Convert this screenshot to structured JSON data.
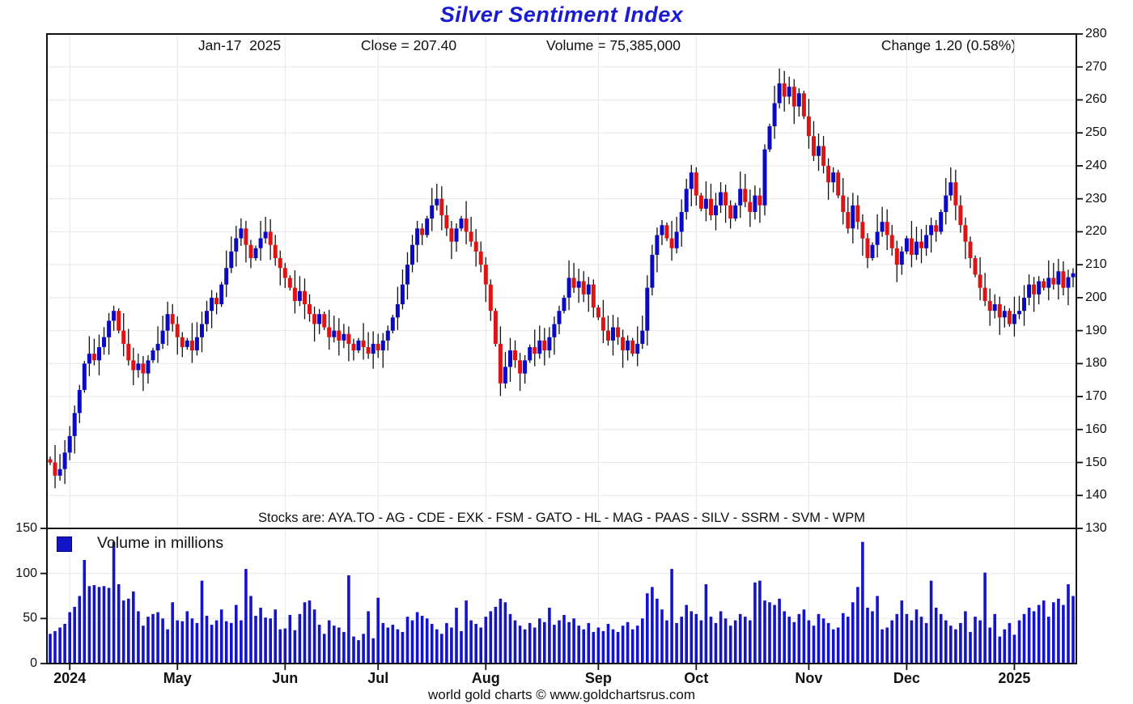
{
  "title": "Silver Sentiment Index",
  "header": {
    "date": "Jan-17  2025",
    "close": "Close = 207.40",
    "volume": "Volume = 75,385,000",
    "change": "Change 1.20 (0.58%)"
  },
  "stocks_line": "Stocks are: AYA.TO - AG - CDE - EXK - FSM - GATO - HL - MAG - PAAS - SILV - SSRM - SVM - WPM",
  "legend": {
    "label": "Volume in millions"
  },
  "footer": "world gold charts © www.goldchartsrus.com",
  "colors": {
    "up": "#0a0ac4",
    "down": "#dc1414",
    "wick": "#111111",
    "volume": "#1414c8",
    "title": "#1b1bd0",
    "grid": "#e8e8e8",
    "grid_vertical": "#e2e6ee",
    "axis": "#111111"
  },
  "chart_data": {
    "type": "candlestick+volume",
    "accuracy_note": "values estimated from chart pixels; opens derived from prior close",
    "price_axis": {
      "min": 130,
      "max": 280,
      "tick_step": 10,
      "side": "right",
      "ticks": [
        280,
        270,
        260,
        250,
        240,
        230,
        220,
        210,
        200,
        190,
        180,
        170,
        160,
        150,
        140,
        130
      ]
    },
    "volume_axis": {
      "min": 0,
      "max": 150,
      "ticks": [
        150,
        100,
        50,
        0
      ],
      "unit": "millions",
      "side": "left"
    },
    "x_months": [
      {
        "label": "2024",
        "index": 4
      },
      {
        "label": "May",
        "index": 26
      },
      {
        "label": "Jun",
        "index": 48
      },
      {
        "label": "Jul",
        "index": 67
      },
      {
        "label": "Aug",
        "index": 89
      },
      {
        "label": "Sep",
        "index": 112
      },
      {
        "label": "Oct",
        "index": 132
      },
      {
        "label": "Nov",
        "index": 155
      },
      {
        "label": "Dec",
        "index": 175
      },
      {
        "label": "2025",
        "index": 197
      }
    ],
    "first_open": 151,
    "closes": [
      150,
      146,
      148,
      153,
      158,
      165,
      172,
      180,
      183,
      181,
      185,
      188,
      193,
      196,
      190,
      186,
      181,
      178,
      180,
      177,
      181,
      184,
      186,
      190,
      195,
      192,
      188,
      185,
      187,
      184,
      188,
      192,
      196,
      200,
      198,
      204,
      209,
      214,
      218,
      221,
      216,
      212,
      215,
      218,
      220,
      216,
      212,
      209,
      206,
      203,
      199,
      202,
      198,
      195,
      192,
      195,
      191,
      188,
      190,
      187,
      189,
      186,
      184,
      187,
      185,
      183,
      186,
      184,
      187,
      190,
      194,
      198,
      204,
      210,
      216,
      221,
      219,
      224,
      228,
      230,
      225,
      221,
      217,
      221,
      224,
      220,
      217,
      214,
      210,
      204,
      196,
      186,
      174,
      179,
      184,
      181,
      177,
      181,
      185,
      183,
      187,
      184,
      188,
      192,
      196,
      200,
      206,
      203,
      205,
      201,
      204,
      197,
      194,
      190,
      187,
      191,
      188,
      184,
      187,
      183,
      186,
      190,
      203,
      213,
      219,
      222,
      218,
      215,
      220,
      226,
      233,
      238,
      231,
      227,
      230,
      225,
      228,
      232,
      228,
      224,
      228,
      233,
      229,
      226,
      231,
      228,
      245,
      252,
      259,
      265,
      261,
      264,
      258,
      262,
      255,
      249,
      243,
      246,
      240,
      235,
      238,
      231,
      226,
      221,
      228,
      223,
      218,
      212,
      216,
      220,
      223,
      219,
      215,
      210,
      214,
      218,
      213,
      217,
      215,
      219,
      222,
      220,
      226,
      231,
      235,
      228,
      222,
      217,
      212,
      207,
      203,
      199,
      196,
      198,
      194,
      196,
      192,
      195,
      196,
      200,
      204,
      201,
      205,
      203,
      206,
      204,
      208,
      203,
      206.2,
      207.4
    ],
    "volumes_millions": [
      33,
      36,
      40,
      44,
      57,
      63,
      75,
      115,
      86,
      87,
      85,
      86,
      84,
      135,
      88,
      70,
      72,
      80,
      58,
      42,
      52,
      55,
      57,
      50,
      38,
      68,
      48,
      47,
      58,
      50,
      45,
      92,
      53,
      43,
      48,
      60,
      47,
      45,
      65,
      48,
      105,
      75,
      53,
      62,
      51,
      50,
      60,
      38,
      39,
      54,
      37,
      55,
      68,
      70,
      60,
      43,
      33,
      48,
      42,
      40,
      35,
      98,
      30,
      26,
      33,
      58,
      28,
      73,
      45,
      40,
      43,
      38,
      35,
      52,
      48,
      57,
      53,
      50,
      44,
      38,
      33,
      45,
      40,
      62,
      36,
      70,
      48,
      44,
      40,
      52,
      58,
      63,
      72,
      68,
      55,
      48,
      42,
      38,
      45,
      40,
      50,
      46,
      62,
      43,
      48,
      54,
      46,
      50,
      42,
      38,
      45,
      35,
      40,
      36,
      44,
      38,
      35,
      42,
      46,
      38,
      42,
      50,
      78,
      85,
      72,
      60,
      48,
      105,
      45,
      52,
      65,
      58,
      55,
      48,
      88,
      52,
      45,
      58,
      50,
      42,
      48,
      55,
      52,
      48,
      90,
      92,
      70,
      68,
      65,
      72,
      58,
      52,
      46,
      55,
      60,
      48,
      42,
      55,
      50,
      45,
      38,
      40,
      56,
      52,
      68,
      85,
      135,
      62,
      58,
      75,
      38,
      40,
      48,
      55,
      70,
      55,
      48,
      60,
      52,
      45,
      92,
      62,
      55,
      48,
      42,
      38,
      45,
      58,
      35,
      52,
      48,
      101,
      40,
      55,
      30,
      38,
      45,
      32,
      48,
      55,
      62,
      58,
      65,
      70,
      52,
      68,
      72,
      65,
      88,
      75
    ],
    "last": {
      "date": "Jan-17 2025",
      "close": 207.4,
      "volume_millions": 75.385,
      "change": 1.2,
      "change_pct": 0.58
    }
  }
}
